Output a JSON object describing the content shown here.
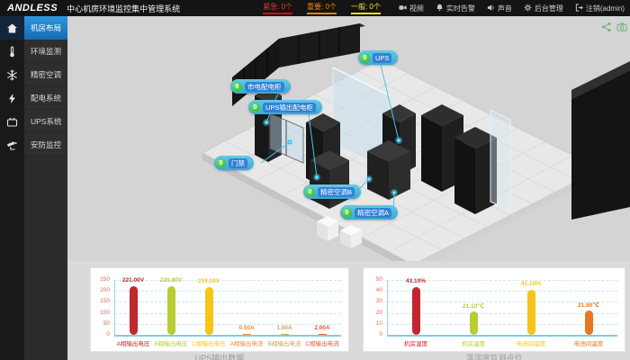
{
  "header": {
    "logo": "ANDLESS",
    "title": "中心机房环境监控集中管理系统",
    "alarms": [
      {
        "label": "紧急:",
        "count": "0个",
        "color": "#e8372c",
        "bar": "#e60012"
      },
      {
        "label": "重要:",
        "count": "0个",
        "color": "#f08300",
        "bar": "#f08300"
      },
      {
        "label": "一般:",
        "count": "0个",
        "color": "#f2e23a",
        "bar": "#f5e400"
      }
    ],
    "menu": [
      {
        "label": "视频"
      },
      {
        "label": "实时告警"
      },
      {
        "label": "声音"
      },
      {
        "label": "后台管理"
      },
      {
        "label": "注销(admin)"
      }
    ]
  },
  "sidebar": {
    "items": [
      {
        "label": "机房布局",
        "active": true
      },
      {
        "label": "环境监测",
        "active": false
      },
      {
        "label": "精密空调",
        "active": false
      },
      {
        "label": "配电系统",
        "active": false
      },
      {
        "label": "UPS系统",
        "active": false
      },
      {
        "label": "安防监控",
        "active": false
      }
    ]
  },
  "scene": {
    "tags": [
      {
        "label": "市电配电柜",
        "badge": "0"
      },
      {
        "label": "UPS输出配电柜",
        "badge": "0"
      },
      {
        "label": "UPS",
        "badge": "0"
      },
      {
        "label": "门禁",
        "badge": "0"
      },
      {
        "label": "精密空调B",
        "badge": "0"
      },
      {
        "label": "精密空调A",
        "badge": "0"
      }
    ]
  },
  "chart_data": [
    {
      "type": "bar",
      "title": "UPS输出数据",
      "categories": [
        "A相输出电压",
        "B相输出电压",
        "C相输出电压",
        "A相输出电流",
        "B相输出电流",
        "C相输出电流"
      ],
      "values": [
        221.0,
        220.8,
        219.1,
        0.5,
        1.0,
        2.0
      ],
      "value_labels": [
        "221.00V",
        "220.80V",
        "219.10V",
        "0.50A",
        "1.00A",
        "2.00A"
      ],
      "colors": [
        "#c1272d",
        "#b8cc33",
        "#f5c518",
        "#ef8a3c",
        "#caa05e",
        "#e2593b"
      ],
      "xlabel": "",
      "ylabel": "",
      "ylim": [
        0,
        250
      ],
      "yticks": [
        0,
        50,
        100,
        150,
        200,
        250
      ],
      "grid": true,
      "legend": "none"
    },
    {
      "type": "bar",
      "title": "温湿度监测点位",
      "categories": [
        "机房湿度",
        "机房温度",
        "电池间湿度",
        "电池间温度"
      ],
      "values": [
        43.1,
        21.1,
        41.1,
        21.9
      ],
      "value_labels": [
        "43.10%",
        "21.10℃",
        "41.10%",
        "21.90℃"
      ],
      "colors": [
        "#c1272d",
        "#b8cc33",
        "#f5c518",
        "#e87722"
      ],
      "xlabel": "",
      "ylabel": "",
      "ylim": [
        0,
        50
      ],
      "yticks": [
        0,
        10,
        20,
        30,
        40,
        50
      ],
      "grid": true,
      "legend": "none"
    }
  ]
}
